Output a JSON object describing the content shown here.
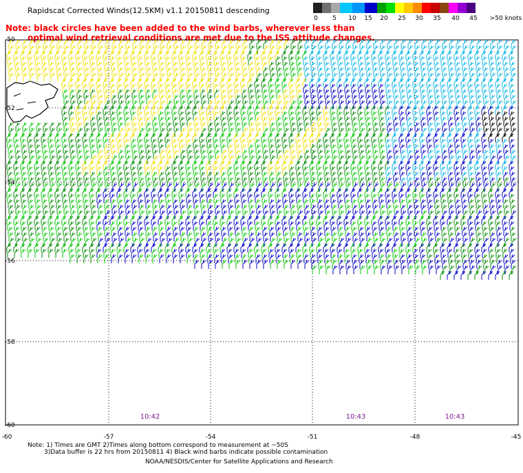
{
  "header": {
    "title": "Rapidscat Corrected Winds(12.5KM) v1.1 20150811 descending",
    "note_line1": "Note: black circles have been added to the wind barbs, wherever less than",
    "note_line2": "optimal wind retrieval conditions are met due to the ISS attitude changes."
  },
  "colorbar": {
    "labels": [
      "0",
      "5",
      "10",
      "15",
      "20",
      "25",
      "30",
      "35",
      "40",
      "45",
      ">50 knots"
    ],
    "colors": [
      "#202020",
      "#707070",
      "#a8a8a8",
      "#00c8ff",
      "#0096ff",
      "#0000c8",
      "#00a000",
      "#00e000",
      "#ffff00",
      "#ffc800",
      "#ff8c00",
      "#ff0000",
      "#c80000",
      "#8b4513",
      "#ff00ff",
      "#9400d3",
      "#4b0082"
    ]
  },
  "axes": {
    "y_labels": [
      "-50",
      "-52",
      "-54",
      "-56",
      "-58",
      "-60"
    ],
    "x_labels": [
      "-60",
      "-57",
      "-54",
      "-51",
      "-48",
      "-45"
    ]
  },
  "times": [
    "10:42",
    "10:43",
    "10:43"
  ],
  "footer": {
    "line1": "Note: 1) Times are GMT 2)Times along bottom correspond to measurement at ~50S",
    "line2": "3)Data buffer is 22 hrs from 20150811 4) Black wind barbs indicate possible contamination",
    "line3": "NOAA/NESDIS/Center for Satellite Applications and Research"
  },
  "map": {
    "wind_colors": {
      "yellow": "#f0e000",
      "green_light": "#00c800",
      "green_dark": "#008c00",
      "blue": "#0000c8",
      "cyan": "#00b4e6",
      "black": "#000000"
    }
  }
}
